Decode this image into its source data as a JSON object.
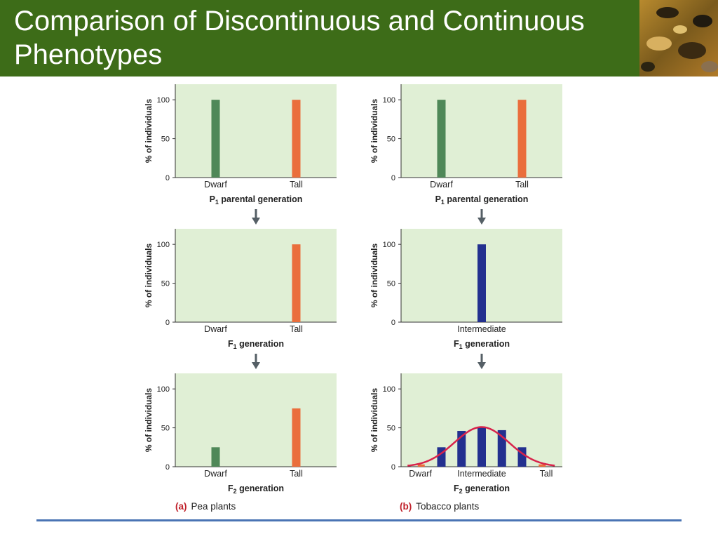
{
  "slide": {
    "title": "Comparison of  Discontinuous and Continuous Phenotypes"
  },
  "colors": {
    "header_bg": "#3d6c18",
    "plot_bg": "#e0efd5",
    "dwarf": "#4f8858",
    "tall": "#ea6e3c",
    "intermediate": "#23308f",
    "curve": "#d8234b",
    "arrow": "#555f66",
    "rule": "#4a74b4"
  },
  "panels": {
    "a": {
      "letter": "(a)",
      "name": "Pea plants"
    },
    "b": {
      "letter": "(b)",
      "name": "Tobacco plants"
    }
  },
  "arrow_icon": "down-arrow-icon",
  "chart_data": [
    {
      "id": "pea-p1",
      "panel": "a",
      "type": "bar",
      "ylabel": "% of individuals",
      "ylim": [
        0,
        120
      ],
      "yticks": [
        0,
        50,
        100
      ],
      "xlabel_main": "P",
      "xlabel_sub": "1",
      "xlabel_rest": " parental generation",
      "categories": [
        "Dwarf",
        "Tall"
      ],
      "values": [
        100,
        100
      ],
      "colors": [
        "#4f8858",
        "#ea6e3c"
      ]
    },
    {
      "id": "pea-f1",
      "panel": "a",
      "type": "bar",
      "ylabel": "% of individuals",
      "ylim": [
        0,
        120
      ],
      "yticks": [
        0,
        50,
        100
      ],
      "xlabel_main": "F",
      "xlabel_sub": "1",
      "xlabel_rest": " generation",
      "categories": [
        "Dwarf",
        "Tall"
      ],
      "values": [
        0,
        100
      ],
      "colors": [
        "#4f8858",
        "#ea6e3c"
      ]
    },
    {
      "id": "pea-f2",
      "panel": "a",
      "type": "bar",
      "ylabel": "% of individuals",
      "ylim": [
        0,
        120
      ],
      "yticks": [
        0,
        50,
        100
      ],
      "xlabel_main": "F",
      "xlabel_sub": "2",
      "xlabel_rest": " generation",
      "categories": [
        "Dwarf",
        "Tall"
      ],
      "values": [
        25,
        75
      ],
      "colors": [
        "#4f8858",
        "#ea6e3c"
      ]
    },
    {
      "id": "tob-p1",
      "panel": "b",
      "type": "bar",
      "ylabel": "% of individuals",
      "ylim": [
        0,
        120
      ],
      "yticks": [
        0,
        50,
        100
      ],
      "xlabel_main": "P",
      "xlabel_sub": "1",
      "xlabel_rest": " parental generation",
      "categories": [
        "Dwarf",
        "Tall"
      ],
      "values": [
        100,
        100
      ],
      "colors": [
        "#4f8858",
        "#ea6e3c"
      ]
    },
    {
      "id": "tob-f1",
      "panel": "b",
      "type": "bar",
      "ylabel": "% of individuals",
      "ylim": [
        0,
        120
      ],
      "yticks": [
        0,
        50,
        100
      ],
      "xlabel_main": "F",
      "xlabel_sub": "1",
      "xlabel_rest": " generation",
      "categories": [
        "Intermediate"
      ],
      "values": [
        100
      ],
      "colors": [
        "#23308f"
      ]
    },
    {
      "id": "tob-f2",
      "panel": "b",
      "type": "bar",
      "ylabel": "% of individuals",
      "ylim": [
        0,
        120
      ],
      "yticks": [
        0,
        50,
        100
      ],
      "xlabel_main": "F",
      "xlabel_sub": "2",
      "xlabel_rest": " generation",
      "tick_labels": [
        "Dwarf",
        "Intermediate",
        "Tall"
      ],
      "values": [
        3,
        25,
        46,
        51,
        47,
        25,
        3
      ],
      "colors": [
        "#ea6e3c",
        "#23308f",
        "#23308f",
        "#23308f",
        "#23308f",
        "#23308f",
        "#ea6e3c"
      ],
      "curve": "normal"
    }
  ]
}
